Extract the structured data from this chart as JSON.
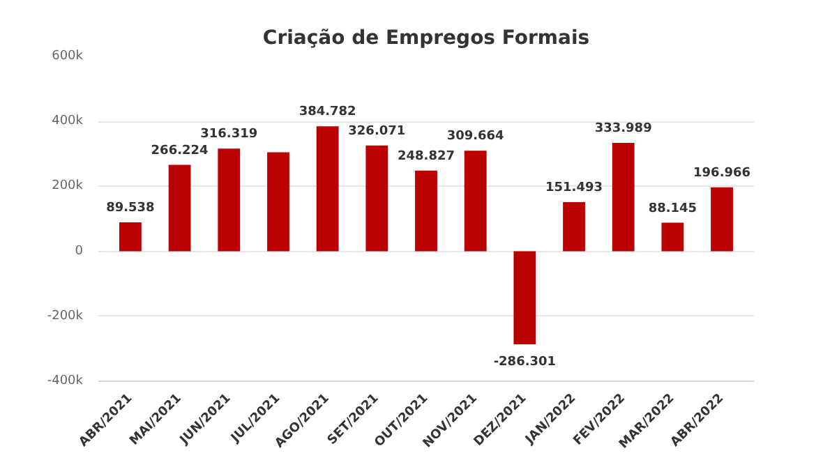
{
  "chart_data": {
    "type": "bar",
    "title": "Criação de Empregos Formais",
    "categories": [
      "ABR/2021",
      "MAI/2021",
      "JUN/2021",
      "JUL/2021",
      "AGO/2021",
      "SET/2021",
      "OUT/2021",
      "NOV/2021",
      "DEZ/2021",
      "JAN/2022",
      "FEV/2022",
      "MAR/2022",
      "ABR/2022"
    ],
    "values": [
      89538,
      266224,
      316319,
      305000,
      384782,
      326071,
      248827,
      309664,
      -286301,
      151493,
      333989,
      88145,
      196966
    ],
    "value_labels": [
      "89.538",
      "266.224",
      "316.319",
      null,
      "384.782",
      "326.071",
      "248.827",
      "309.664",
      "-286.301",
      "151.493",
      "333.989",
      "88.145",
      "196.966"
    ],
    "color": "#bb0000",
    "ylim": [
      -400000,
      600000
    ],
    "yticks": [
      {
        "value": -400000,
        "label": "-400k"
      },
      {
        "value": -200000,
        "label": "-200k"
      },
      0,
      {
        "value": 200000,
        "label": "200k"
      },
      {
        "value": 400000,
        "label": "400k"
      },
      {
        "value": 600000,
        "label": "600k"
      }
    ],
    "grid": "y"
  }
}
